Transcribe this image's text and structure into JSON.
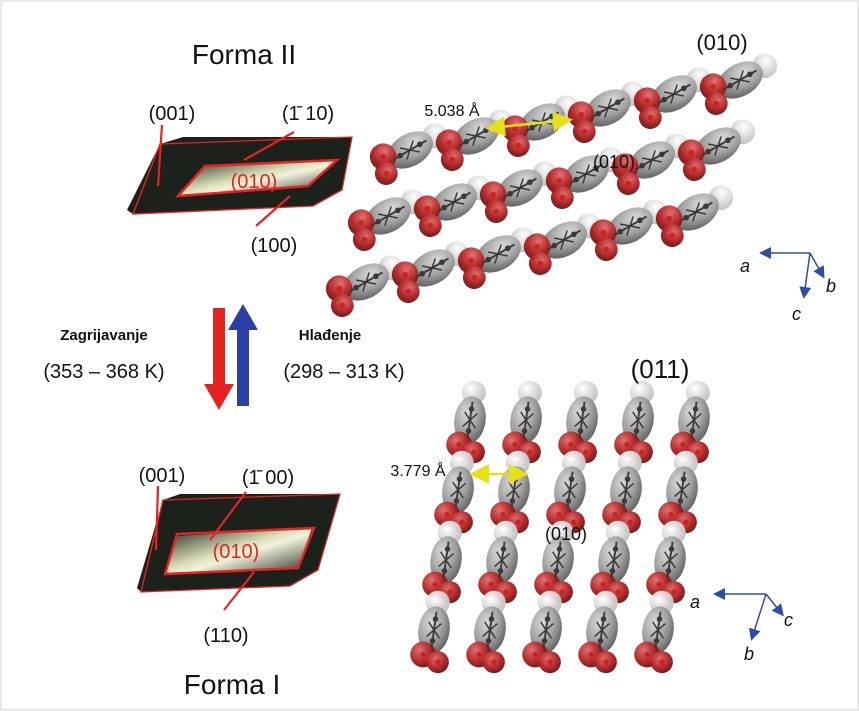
{
  "form_ii": {
    "title": "Forma II",
    "faces": [
      "(001)",
      "(̄110)",
      "(010)",
      "(100)"
    ],
    "face_labels": {
      "top_left": "(001)",
      "top_right": "(1̄ 10)",
      "center": "(010)",
      "bottom": "(100)"
    }
  },
  "form_i": {
    "title": "Forma I",
    "face_labels": {
      "top_left": "(001)",
      "top_right": "(1̄ 00)",
      "center": "(010)",
      "bottom": "(110)"
    }
  },
  "transition": {
    "heating_label": "Zagrijavanje",
    "heating_range": "(353 – 368 K)",
    "cooling_label": "Hlađenje",
    "cooling_range": "(298 – 313 K)",
    "heating_color": "#e52421",
    "cooling_color": "#2b3fa6"
  },
  "packing_top": {
    "plane": "(010)",
    "inner_plane": "(010)",
    "distance": "5.038 Å",
    "axes": {
      "a": "a",
      "b": "b",
      "c": "c"
    }
  },
  "packing_bottom": {
    "plane": "(011)",
    "inner_plane": "(010)",
    "distance": "3.779 Å",
    "axes": {
      "a": "a",
      "b": "b",
      "c": "c"
    }
  },
  "colors": {
    "oxygen": "#b22222",
    "carbon": "#8a8a8a",
    "hydrogen": "#d8d8d8",
    "crystal_outline": "#e52421",
    "distance_arrow": "#e6e01a",
    "axis_arrow": "#2b4fa6"
  }
}
